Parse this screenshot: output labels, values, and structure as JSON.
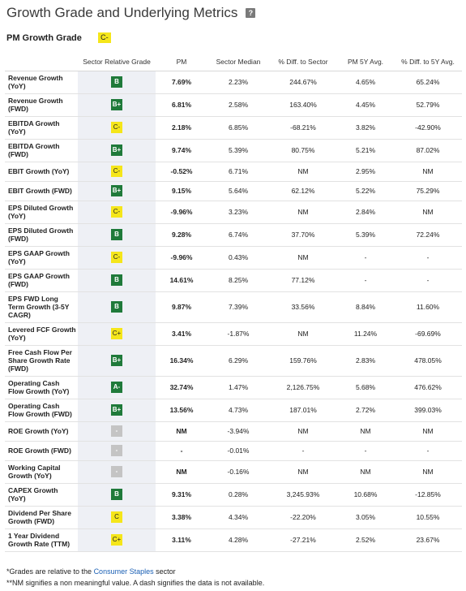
{
  "header": {
    "title": "Growth Grade and Underlying Metrics",
    "help_icon": "?"
  },
  "grade": {
    "label": "PM Growth Grade",
    "value": "C-"
  },
  "columns": [
    "",
    "Sector Relative Grade",
    "PM",
    "Sector Median",
    "% Diff. to Sector",
    "PM 5Y Avg.",
    "% Diff. to 5Y Avg."
  ],
  "rows": [
    {
      "metric": [
        "Revenue Growth",
        "(YoY)"
      ],
      "grade": "B",
      "grade_color": "green",
      "pm": "7.69%",
      "median": "2.23%",
      "diff_sector": "244.67%",
      "avg5y": "4.65%",
      "diff_5y": "65.24%"
    },
    {
      "metric": [
        "Revenue Growth",
        "(FWD)"
      ],
      "grade": "B+",
      "grade_color": "green",
      "pm": "6.81%",
      "median": "2.58%",
      "diff_sector": "163.40%",
      "avg5y": "4.45%",
      "diff_5y": "52.79%"
    },
    {
      "metric": [
        "EBITDA Growth",
        "(YoY)"
      ],
      "grade": "C-",
      "grade_color": "yellow",
      "pm": "2.18%",
      "median": "6.85%",
      "diff_sector": "-68.21%",
      "avg5y": "3.82%",
      "diff_5y": "-42.90%"
    },
    {
      "metric": [
        "EBITDA Growth",
        "(FWD)"
      ],
      "grade": "B+",
      "grade_color": "green",
      "pm": "9.74%",
      "median": "5.39%",
      "diff_sector": "80.75%",
      "avg5y": "5.21%",
      "diff_5y": "87.02%"
    },
    {
      "metric": [
        "EBIT Growth (YoY)"
      ],
      "grade": "C-",
      "grade_color": "yellow",
      "pm": "-0.52%",
      "median": "6.71%",
      "diff_sector": "NM",
      "avg5y": "2.95%",
      "diff_5y": "NM"
    },
    {
      "metric": [
        "EBIT Growth (FWD)"
      ],
      "grade": "B+",
      "grade_color": "green",
      "pm": "9.15%",
      "median": "5.64%",
      "diff_sector": "62.12%",
      "avg5y": "5.22%",
      "diff_5y": "75.29%"
    },
    {
      "metric": [
        "EPS Diluted Growth",
        "(YoY)"
      ],
      "grade": "C-",
      "grade_color": "yellow",
      "pm": "-9.96%",
      "median": "3.23%",
      "diff_sector": "NM",
      "avg5y": "2.84%",
      "diff_5y": "NM"
    },
    {
      "metric": [
        "EPS Diluted Growth",
        "(FWD)"
      ],
      "grade": "B",
      "grade_color": "green",
      "pm": "9.28%",
      "median": "6.74%",
      "diff_sector": "37.70%",
      "avg5y": "5.39%",
      "diff_5y": "72.24%"
    },
    {
      "metric": [
        "EPS GAAP Growth",
        "(YoY)"
      ],
      "grade": "C-",
      "grade_color": "yellow",
      "pm": "-9.96%",
      "median": "0.43%",
      "diff_sector": "NM",
      "avg5y": "-",
      "diff_5y": "-"
    },
    {
      "metric": [
        "EPS GAAP Growth",
        "(FWD)"
      ],
      "grade": "B",
      "grade_color": "green",
      "pm": "14.61%",
      "median": "8.25%",
      "diff_sector": "77.12%",
      "avg5y": "-",
      "diff_5y": "-"
    },
    {
      "metric": [
        "EPS FWD Long",
        "Term Growth (3-5Y",
        "CAGR)"
      ],
      "grade": "B",
      "grade_color": "green",
      "pm": "9.87%",
      "median": "7.39%",
      "diff_sector": "33.56%",
      "avg5y": "8.84%",
      "diff_5y": "11.60%"
    },
    {
      "metric": [
        "Levered FCF Growth",
        "(YoY)"
      ],
      "grade": "C+",
      "grade_color": "yellow",
      "pm": "3.41%",
      "median": "-1.87%",
      "diff_sector": "NM",
      "avg5y": "11.24%",
      "diff_5y": "-69.69%"
    },
    {
      "metric": [
        "Free Cash Flow Per",
        "Share Growth Rate",
        "(FWD)"
      ],
      "grade": "B+",
      "grade_color": "green",
      "pm": "16.34%",
      "median": "6.29%",
      "diff_sector": "159.76%",
      "avg5y": "2.83%",
      "diff_5y": "478.05%"
    },
    {
      "metric": [
        "Operating Cash",
        "Flow Growth (YoY)"
      ],
      "grade": "A-",
      "grade_color": "green",
      "pm": "32.74%",
      "median": "1.47%",
      "diff_sector": "2,126.75%",
      "avg5y": "5.68%",
      "diff_5y": "476.62%"
    },
    {
      "metric": [
        "Operating Cash",
        "Flow Growth (FWD)"
      ],
      "grade": "B+",
      "grade_color": "green",
      "pm": "13.56%",
      "median": "4.73%",
      "diff_sector": "187.01%",
      "avg5y": "2.72%",
      "diff_5y": "399.03%"
    },
    {
      "metric": [
        "ROE Growth (YoY)"
      ],
      "grade": "-",
      "grade_color": "gray",
      "pm": "NM",
      "median": "-3.94%",
      "diff_sector": "NM",
      "avg5y": "NM",
      "diff_5y": "NM"
    },
    {
      "metric": [
        "ROE Growth (FWD)"
      ],
      "grade": "-",
      "grade_color": "gray",
      "pm": "-",
      "median": "-0.01%",
      "diff_sector": "-",
      "avg5y": "-",
      "diff_5y": "-"
    },
    {
      "metric": [
        "Working Capital",
        "Growth (YoY)"
      ],
      "grade": "-",
      "grade_color": "gray",
      "pm": "NM",
      "median": "-0.16%",
      "diff_sector": "NM",
      "avg5y": "NM",
      "diff_5y": "NM"
    },
    {
      "metric": [
        "CAPEX Growth",
        "(YoY)"
      ],
      "grade": "B",
      "grade_color": "green",
      "pm": "9.31%",
      "median": "0.28%",
      "diff_sector": "3,245.93%",
      "avg5y": "10.68%",
      "diff_5y": "-12.85%"
    },
    {
      "metric": [
        "Dividend Per Share",
        "Growth (FWD)"
      ],
      "grade": "C",
      "grade_color": "yellow",
      "pm": "3.38%",
      "median": "4.34%",
      "diff_sector": "-22.20%",
      "avg5y": "3.05%",
      "diff_5y": "10.55%"
    },
    {
      "metric": [
        "1 Year Dividend",
        "Growth Rate (TTM)"
      ],
      "grade": "C+",
      "grade_color": "yellow",
      "pm": "3.11%",
      "median": "4.28%",
      "diff_sector": "-27.21%",
      "avg5y": "2.52%",
      "diff_5y": "23.67%"
    }
  ],
  "colors": {
    "grade_green": "#1f7a3a",
    "grade_yellow": "#f5e61a",
    "grade_gray": "#c4c4c4",
    "link": "#1a5fb4"
  },
  "footer": {
    "note1_prefix": "*Grades are relative to the ",
    "note1_link": "Consumer Staples",
    "note1_suffix": " sector",
    "note2": "**NM signifies a non meaningful value. A dash signifies the data is not available."
  }
}
